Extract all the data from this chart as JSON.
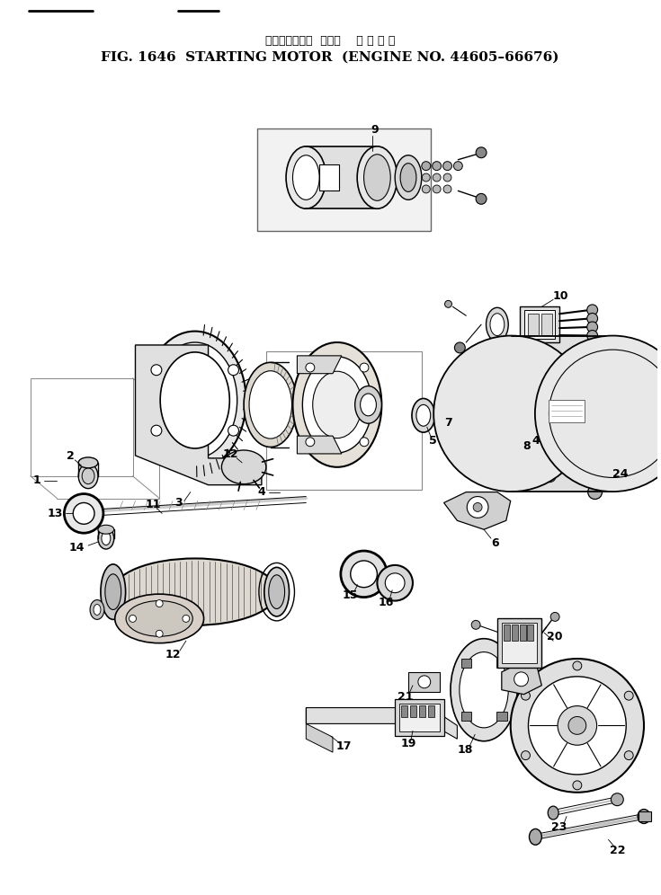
{
  "title_japanese": "スターティング  モータ    適 用 号 機",
  "title_english": "FIG. 1646  STARTING MOTOR  (ENGINE NO. 44605–66676)",
  "bg_color": "#ffffff",
  "line_color": "#000000",
  "fig_width": 7.35,
  "fig_height": 9.96,
  "dpi": 100
}
